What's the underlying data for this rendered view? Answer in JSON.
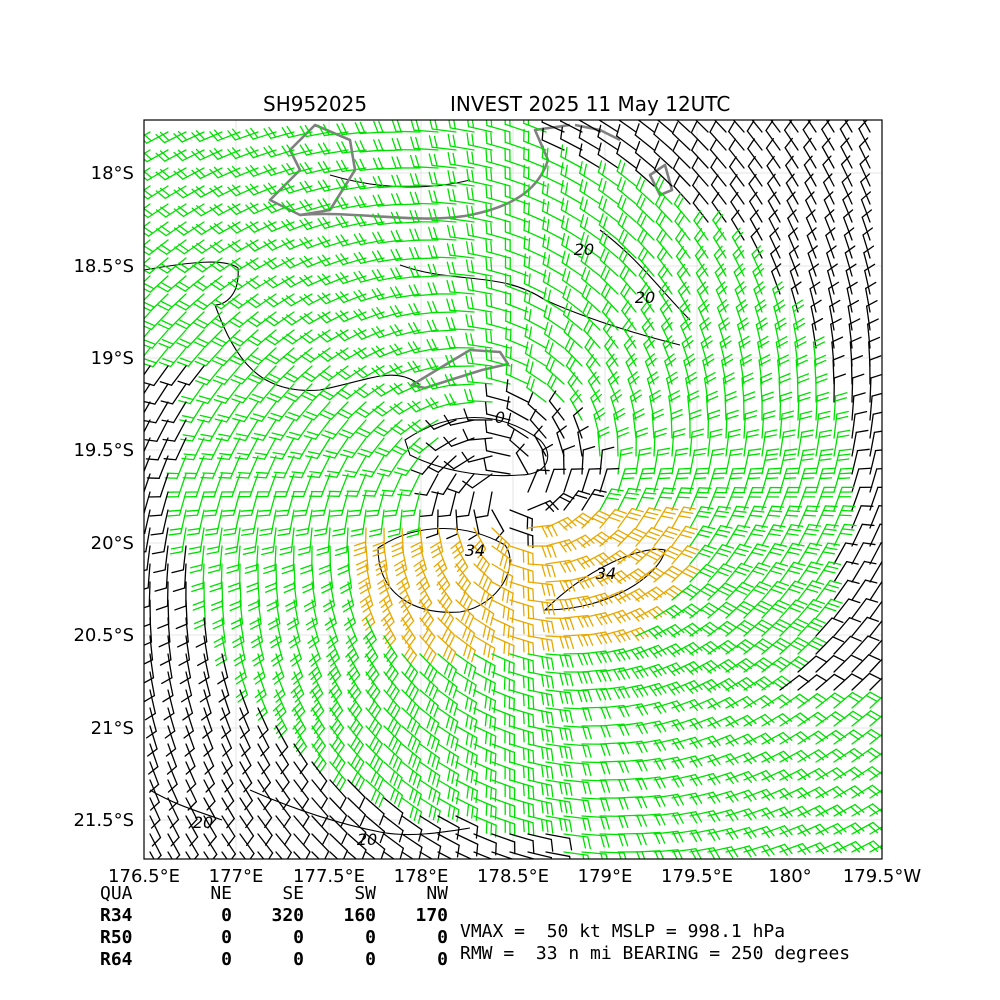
{
  "header": {
    "storm_id": "SH952025",
    "title": "INVEST 2025 11 May 12UTC"
  },
  "map": {
    "lon_labels": [
      "176.5°E",
      "177°E",
      "177.5°E",
      "178°E",
      "178.5°E",
      "179°E",
      "179.5°E",
      "180°",
      "179.5°W"
    ],
    "lat_labels": [
      "18°S",
      "18.5°S",
      "19°S",
      "19.5°S",
      "20°S",
      "20.5°S",
      "21°S",
      "21.5°S"
    ],
    "contour_labels": [
      "20",
      "20",
      "0",
      "34",
      "34",
      "20",
      "20"
    ],
    "barb_colors": {
      "weak": "#000000",
      "r20": "#00e000",
      "r34": "#e8a800"
    },
    "coast_color": "#808080"
  },
  "wind_radii": {
    "header": [
      "QUA",
      "NE",
      "SE",
      "SW",
      "NW"
    ],
    "rows": [
      {
        "label": "R34",
        "values": [
          "0",
          "320",
          "160",
          "170"
        ]
      },
      {
        "label": "R50",
        "values": [
          "0",
          "0",
          "0",
          "0"
        ]
      },
      {
        "label": "R64",
        "values": [
          "0",
          "0",
          "0",
          "0"
        ]
      }
    ]
  },
  "info": {
    "line1": "VMAX =  50 kt MSLP = 998.1 hPa",
    "line2": "RMW =  33 n mi BEARING = 250 degrees"
  }
}
